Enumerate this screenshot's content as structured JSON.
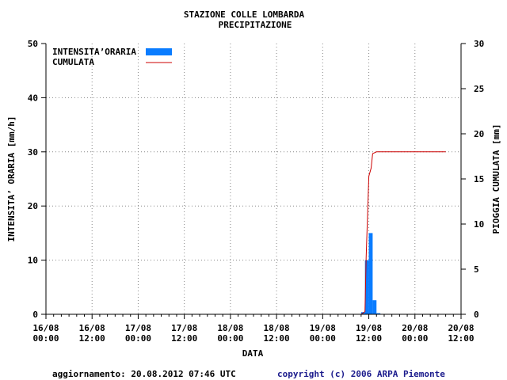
{
  "chart_data": {
    "type": "bar",
    "title": "STAZIONE COLLE LOMBARDA",
    "subtitle": "PRECIPITAZIONE",
    "xlabel": "DATA",
    "ylabel": "INTENSITA’ ORARIA [mm/h]",
    "y2label": "PIOGGIA CUMULATA [mm]",
    "ylim": [
      0,
      50
    ],
    "y2lim": [
      0,
      30
    ],
    "yticks": [
      "0",
      "10",
      "20",
      "30",
      "40",
      "50"
    ],
    "y2ticks": [
      "0",
      "5",
      "10",
      "15",
      "20",
      "25",
      "30"
    ],
    "xticks": [
      {
        "date": "16/08",
        "time": "00:00"
      },
      {
        "date": "16/08",
        "time": "12:00"
      },
      {
        "date": "17/08",
        "time": "00:00"
      },
      {
        "date": "17/08",
        "time": "12:00"
      },
      {
        "date": "18/08",
        "time": "00:00"
      },
      {
        "date": "18/08",
        "time": "12:00"
      },
      {
        "date": "19/08",
        "time": "00:00"
      },
      {
        "date": "19/08",
        "time": "12:00"
      },
      {
        "date": "20/08",
        "time": "00:00"
      },
      {
        "date": "20/08",
        "time": "12:00"
      }
    ],
    "grid": true,
    "legend_position": "top-left",
    "series": [
      {
        "name": "INTENSITA’ORARIA",
        "kind": "bar",
        "color": "#0a7cff",
        "axis": "left",
        "hours_from_start": [
          82,
          83,
          84,
          85,
          86
        ],
        "values": [
          0.4,
          10.0,
          15.0,
          2.6,
          0.2
        ]
      },
      {
        "name": "CUMULATA",
        "kind": "line",
        "color": "#cc0000",
        "axis": "right",
        "hours_from_start": [
          0,
          82,
          83,
          83.3,
          84,
          84.6,
          85,
          86,
          87,
          104
        ],
        "values": [
          0,
          0,
          0.3,
          6.3,
          15.3,
          16.2,
          17.8,
          18.0,
          18.0,
          18.0
        ]
      }
    ]
  },
  "footer": {
    "updated": "aggiornamento: 20.08.2012 07:46 UTC",
    "copyright": "copyright (c) 2006 ARPA Piemonte"
  }
}
